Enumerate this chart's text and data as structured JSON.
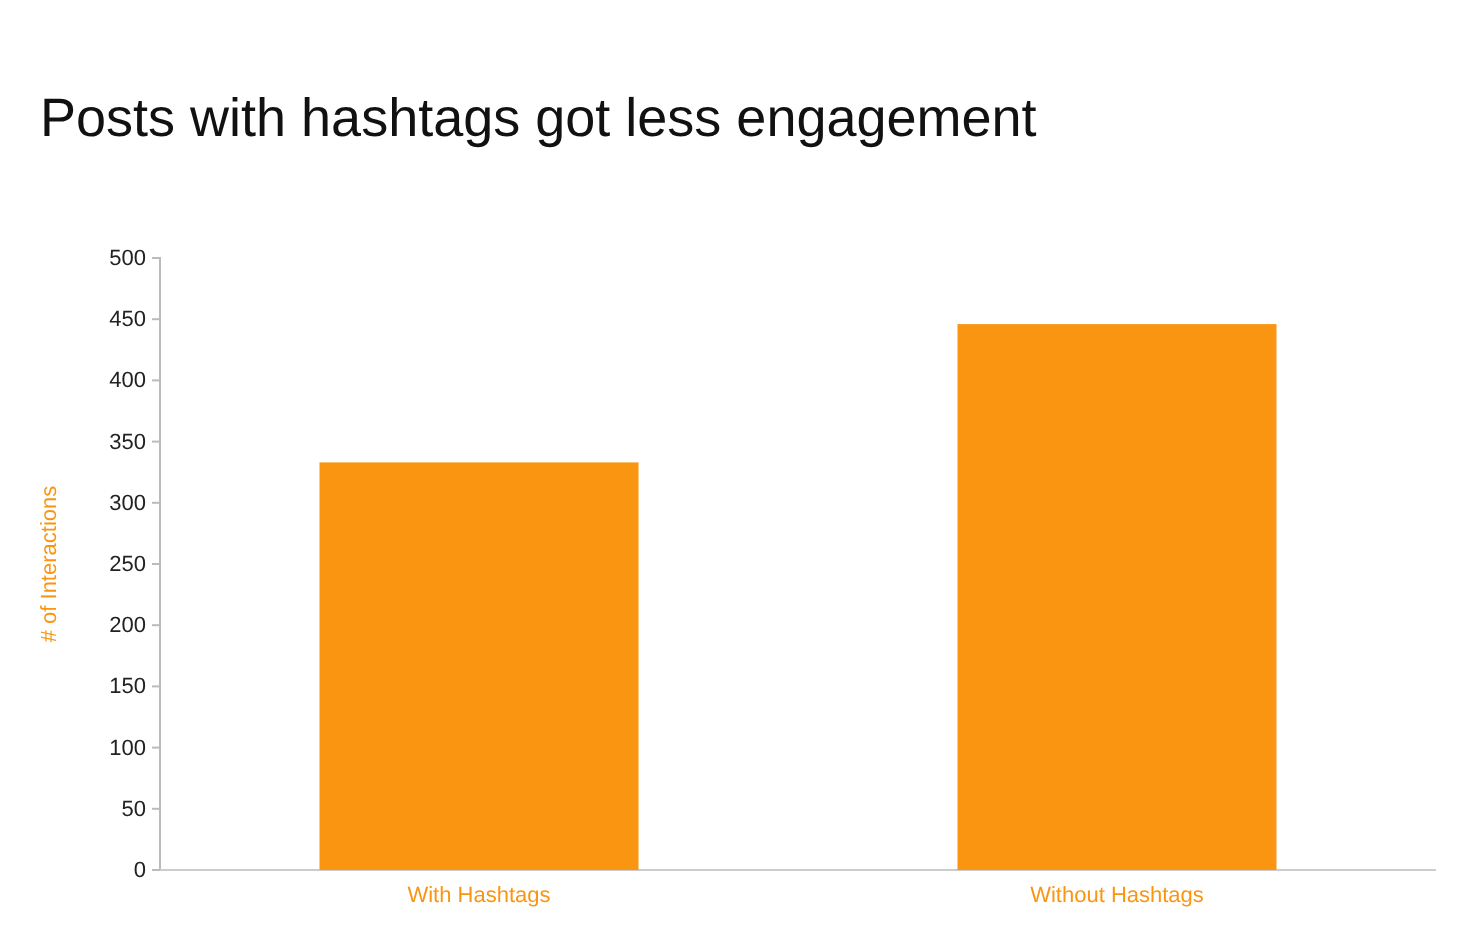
{
  "chart_data": {
    "type": "bar",
    "title": "Posts with hashtags got less engagement",
    "ylabel": "# of Interactions",
    "categories": [
      "With Hashtags",
      "Without Hashtags"
    ],
    "values": [
      333,
      446
    ],
    "color": "#fa9512",
    "ylim": [
      0,
      500
    ],
    "yticks": [
      0,
      50,
      100,
      150,
      200,
      250,
      300,
      350,
      400,
      450,
      500
    ],
    "grid": false
  }
}
